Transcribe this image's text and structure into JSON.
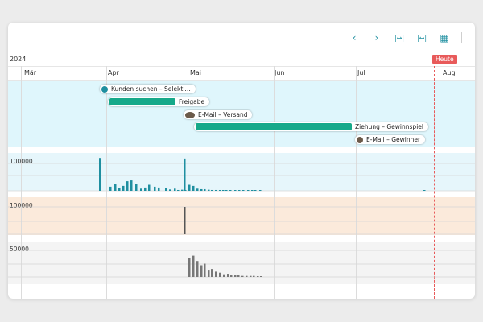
{
  "toolbar": {
    "prev_icon": "‹",
    "next_icon": "›",
    "fit_icon": "|↔|",
    "zoom_icon": "|↔|",
    "calendar_icon": "▦"
  },
  "timeline": {
    "year": "2024",
    "months": [
      "Mär",
      "Apr",
      "Mai",
      "Jun",
      "Jul",
      "Aug"
    ],
    "today_label": "Heute"
  },
  "tasks": [
    {
      "label": "Kunden suchen – Selekti…",
      "type": "milestone",
      "color": "#1e8fa0"
    },
    {
      "label": "Freigabe",
      "type": "bar",
      "color": "#16a98a"
    },
    {
      "label": "E-Mail – Versand",
      "type": "milestone",
      "color": "#6b5a4a"
    },
    {
      "label": "Ziehung – Gewinnspiel",
      "type": "bar",
      "color": "#16a98a"
    },
    {
      "label": "E-Mail – Gewinner",
      "type": "milestone",
      "color": "#6b5a4a"
    }
  ],
  "charts": [
    {
      "ytick": "100000",
      "color": "#1e8fa0",
      "bg": "#e6f6fb"
    },
    {
      "ytick": "100000",
      "color": "#555555",
      "bg": "#fbeadb"
    },
    {
      "ytick": "50000",
      "color": "#777777",
      "bg": "#f4f4f4"
    }
  ],
  "chart_data": [
    {
      "type": "bar",
      "ylabel": "",
      "yticks": [
        "100000"
      ],
      "series": [
        {
          "name": "",
          "color": "#1e8fa0",
          "values": [
            120000,
            15000,
            25000,
            10000,
            18000,
            35000,
            38000,
            25000,
            8000,
            12000,
            22000,
            15000,
            12000,
            10000,
            5000,
            8000,
            3000,
            4000,
            3000,
            118000,
            22000,
            18000,
            8000,
            6000,
            6000,
            4000,
            3000,
            3000,
            2000,
            2000,
            2000,
            2000,
            1000,
            2000,
            1000,
            1000,
            1000,
            1000,
            1000,
            1000
          ]
        }
      ]
    },
    {
      "type": "bar",
      "ylabel": "",
      "yticks": [
        "100000"
      ],
      "series": [
        {
          "name": "",
          "color": "#555555",
          "values": [
            100000
          ]
        }
      ]
    },
    {
      "type": "bar",
      "ylabel": "",
      "yticks": [
        "50000"
      ],
      "series": [
        {
          "name": "",
          "color": "#777777",
          "values": [
            35000,
            40000,
            30000,
            22000,
            25000,
            12000,
            15000,
            10000,
            8000,
            5000,
            6000,
            3000,
            3000,
            3000,
            2000,
            2000,
            2000,
            2000,
            1000,
            1000
          ]
        }
      ]
    }
  ]
}
